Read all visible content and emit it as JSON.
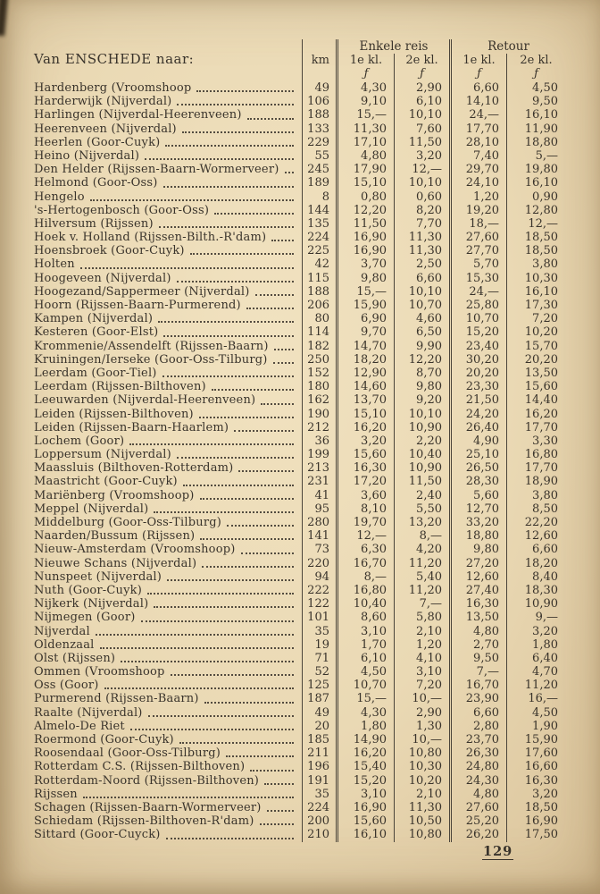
{
  "page": {
    "title": "Van ENSCHEDE naar:",
    "page_number": "129",
    "colors": {
      "paper": "#ead9b4",
      "ink": "#39332b",
      "rule": "#4a443a"
    }
  },
  "table": {
    "headers": {
      "km": "km",
      "enkele_reis": "Enkele reis",
      "retour": "Retour",
      "first_class": "1e kl.",
      "second_class": "2e kl.",
      "currency": "ƒ"
    },
    "rows": [
      {
        "name": "Hardenberg (Vroomshoop",
        "km": "49",
        "e1": "4,30",
        "e2": "2,90",
        "r1": "6,60",
        "r2": "4,50"
      },
      {
        "name": "Harderwijk (Nijverdal)",
        "km": "106",
        "e1": "9,10",
        "e2": "6,10",
        "r1": "14,10",
        "r2": "9,50"
      },
      {
        "name": "Harlingen (Nijverdal-Heerenveen)",
        "km": "188",
        "e1": "15,—",
        "e2": "10,10",
        "r1": "24,—",
        "r2": "16,10"
      },
      {
        "name": "Heerenveen (Nijverdal)",
        "km": "133",
        "e1": "11,30",
        "e2": "7,60",
        "r1": "17,70",
        "r2": "11,90"
      },
      {
        "name": "Heerlen (Goor-Cuyk)",
        "km": "229",
        "e1": "17,10",
        "e2": "11,50",
        "r1": "28,10",
        "r2": "18,80"
      },
      {
        "name": "Heino (Nijverdal)",
        "km": "55",
        "e1": "4,80",
        "e2": "3,20",
        "r1": "7,40",
        "r2": "5,—"
      },
      {
        "name": "Den Helder (Rijssen-Baarn-Wormerveer)",
        "km": "245",
        "e1": "17,90",
        "e2": "12,—",
        "r1": "29,70",
        "r2": "19,80"
      },
      {
        "name": "Helmond (Goor-Oss)",
        "km": "189",
        "e1": "15,10",
        "e2": "10,10",
        "r1": "24,10",
        "r2": "16,10"
      },
      {
        "name": "Hengelo",
        "km": "8",
        "e1": "0,80",
        "e2": "0,60",
        "r1": "1,20",
        "r2": "0,90"
      },
      {
        "name": "'s-Hertogenbosch (Goor-Oss)",
        "km": "144",
        "e1": "12,20",
        "e2": "8,20",
        "r1": "19,20",
        "r2": "12,80"
      },
      {
        "name": "Hilversum (Rijssen)",
        "km": "135",
        "e1": "11,50",
        "e2": "7,70",
        "r1": "18,—",
        "r2": "12,—"
      },
      {
        "name": "Hoek v. Holland (Rijssen-Bilth.-R'dam)",
        "km": "224",
        "e1": "16,90",
        "e2": "11,30",
        "r1": "27,60",
        "r2": "18,50"
      },
      {
        "name": "Hoensbroek (Goor-Cuyk)",
        "km": "225",
        "e1": "16,90",
        "e2": "11,30",
        "r1": "27,70",
        "r2": "18,50"
      },
      {
        "name": "Holten",
        "km": "42",
        "e1": "3,70",
        "e2": "2,50",
        "r1": "5,70",
        "r2": "3,80"
      },
      {
        "name": "Hoogeveen (Nijverdal)",
        "km": "115",
        "e1": "9,80",
        "e2": "6,60",
        "r1": "15,30",
        "r2": "10,30"
      },
      {
        "name": "Hoogezand/Sappermeer (Nijverdal)",
        "km": "188",
        "e1": "15,—",
        "e2": "10,10",
        "r1": "24,—",
        "r2": "16,10"
      },
      {
        "name": "Hoorn (Rijssen-Baarn-Purmerend)",
        "km": "206",
        "e1": "15,90",
        "e2": "10,70",
        "r1": "25,80",
        "r2": "17,30"
      },
      {
        "name": "Kampen (Nijverdal)",
        "km": "80",
        "e1": "6,90",
        "e2": "4,60",
        "r1": "10,70",
        "r2": "7,20"
      },
      {
        "name": "Kesteren (Goor-Elst)",
        "km": "114",
        "e1": "9,70",
        "e2": "6,50",
        "r1": "15,20",
        "r2": "10,20"
      },
      {
        "name": "Krommenie/Assendelft (Rijssen-Baarn)",
        "km": "182",
        "e1": "14,70",
        "e2": "9,90",
        "r1": "23,40",
        "r2": "15,70"
      },
      {
        "name": "Kruiningen/Ierseke (Goor-Oss-Tilburg)",
        "km": "250",
        "e1": "18,20",
        "e2": "12,20",
        "r1": "30,20",
        "r2": "20,20"
      },
      {
        "name": "Leerdam (Goor-Tiel)",
        "km": "152",
        "e1": "12,90",
        "e2": "8,70",
        "r1": "20,20",
        "r2": "13,50"
      },
      {
        "name": "Leerdam (Rijssen-Bilthoven)",
        "km": "180",
        "e1": "14,60",
        "e2": "9,80",
        "r1": "23,30",
        "r2": "15,60"
      },
      {
        "name": "Leeuwarden (Nijverdal-Heerenveen)",
        "km": "162",
        "e1": "13,70",
        "e2": "9,20",
        "r1": "21,50",
        "r2": "14,40"
      },
      {
        "name": "Leiden (Rijssen-Bilthoven)",
        "km": "190",
        "e1": "15,10",
        "e2": "10,10",
        "r1": "24,20",
        "r2": "16,20"
      },
      {
        "name": "Leiden (Rijssen-Baarn-Haarlem)",
        "km": "212",
        "e1": "16,20",
        "e2": "10,90",
        "r1": "26,40",
        "r2": "17,70"
      },
      {
        "name": "Lochem (Goor)",
        "km": "36",
        "e1": "3,20",
        "e2": "2,20",
        "r1": "4,90",
        "r2": "3,30"
      },
      {
        "name": "Loppersum (Nijverdal)",
        "km": "199",
        "e1": "15,60",
        "e2": "10,40",
        "r1": "25,10",
        "r2": "16,80"
      },
      {
        "name": "Maassluis (Bilthoven-Rotterdam)",
        "km": "213",
        "e1": "16,30",
        "e2": "10,90",
        "r1": "26,50",
        "r2": "17,70"
      },
      {
        "name": "Maastricht (Goor-Cuyk)",
        "km": "231",
        "e1": "17,20",
        "e2": "11,50",
        "r1": "28,30",
        "r2": "18,90"
      },
      {
        "name": "Mariënberg (Vroomshoop)",
        "km": "41",
        "e1": "3,60",
        "e2": "2,40",
        "r1": "5,60",
        "r2": "3,80"
      },
      {
        "name": "Meppel (Nijverdal)",
        "km": "95",
        "e1": "8,10",
        "e2": "5,50",
        "r1": "12,70",
        "r2": "8,50"
      },
      {
        "name": "Middelburg (Goor-Oss-Tilburg)",
        "km": "280",
        "e1": "19,70",
        "e2": "13,20",
        "r1": "33,20",
        "r2": "22,20"
      },
      {
        "name": "Naarden/Bussum (Rijssen)",
        "km": "141",
        "e1": "12,—",
        "e2": "8,—",
        "r1": "18,80",
        "r2": "12,60"
      },
      {
        "name": "Nieuw-Amsterdam (Vroomshoop)",
        "km": "73",
        "e1": "6,30",
        "e2": "4,20",
        "r1": "9,80",
        "r2": "6,60"
      },
      {
        "name": "Nieuwe Schans (Nijverdal)",
        "km": "220",
        "e1": "16,70",
        "e2": "11,20",
        "r1": "27,20",
        "r2": "18,20"
      },
      {
        "name": "Nunspeet (Nijverdal)",
        "km": "94",
        "e1": "8,—",
        "e2": "5,40",
        "r1": "12,60",
        "r2": "8,40"
      },
      {
        "name": "Nuth (Goor-Cuyk)",
        "km": "222",
        "e1": "16,80",
        "e2": "11,20",
        "r1": "27,40",
        "r2": "18,30"
      },
      {
        "name": "Nijkerk (Nijverdal)",
        "km": "122",
        "e1": "10,40",
        "e2": "7,—",
        "r1": "16,30",
        "r2": "10,90"
      },
      {
        "name": "Nijmegen (Goor)",
        "km": "101",
        "e1": "8,60",
        "e2": "5,80",
        "r1": "13,50",
        "r2": "9,—"
      },
      {
        "name": "Nijverdal",
        "km": "35",
        "e1": "3,10",
        "e2": "2,10",
        "r1": "4,80",
        "r2": "3,20"
      },
      {
        "name": "Oldenzaal",
        "km": "19",
        "e1": "1,70",
        "e2": "1,20",
        "r1": "2,70",
        "r2": "1,80"
      },
      {
        "name": "Olst (Rijssen)",
        "km": "71",
        "e1": "6,10",
        "e2": "4,10",
        "r1": "9,50",
        "r2": "6,40"
      },
      {
        "name": "Ommen (Vroomshoop",
        "km": "52",
        "e1": "4,50",
        "e2": "3,10",
        "r1": "7,—",
        "r2": "4,70"
      },
      {
        "name": "Oss (Goor)",
        "km": "125",
        "e1": "10,70",
        "e2": "7,20",
        "r1": "16,70",
        "r2": "11,20"
      },
      {
        "name": "Purmerend (Rijssen-Baarn)",
        "km": "187",
        "e1": "15,—",
        "e2": "10,—",
        "r1": "23,90",
        "r2": "16,—"
      },
      {
        "name": "Raalte (Nijverdal)",
        "km": "49",
        "e1": "4,30",
        "e2": "2,90",
        "r1": "6,60",
        "r2": "4,50"
      },
      {
        "name": "Almelo-De Riet",
        "km": "20",
        "e1": "1,80",
        "e2": "1,30",
        "r1": "2,80",
        "r2": "1,90"
      },
      {
        "name": "Roermond (Goor-Cuyk)",
        "km": "185",
        "e1": "14,90",
        "e2": "10,—",
        "r1": "23,70",
        "r2": "15,90"
      },
      {
        "name": "Roosendaal (Goor-Oss-Tilburg)",
        "km": "211",
        "e1": "16,20",
        "e2": "10,80",
        "r1": "26,30",
        "r2": "17,60"
      },
      {
        "name": "Rotterdam C.S. (Rijssen-Bilthoven)",
        "km": "196",
        "e1": "15,40",
        "e2": "10,30",
        "r1": "24,80",
        "r2": "16,60"
      },
      {
        "name": "Rotterdam-Noord (Rijssen-Bilthoven)",
        "km": "191",
        "e1": "15,20",
        "e2": "10,20",
        "r1": "24,30",
        "r2": "16,30"
      },
      {
        "name": "Rijssen",
        "km": "35",
        "e1": "3,10",
        "e2": "2,10",
        "r1": "4,80",
        "r2": "3,20"
      },
      {
        "name": "Schagen (Rijssen-Baarn-Wormerveer)",
        "km": "224",
        "e1": "16,90",
        "e2": "11,30",
        "r1": "27,60",
        "r2": "18,50"
      },
      {
        "name": "Schiedam (Rijssen-Bilthoven-R'dam)",
        "km": "200",
        "e1": "15,60",
        "e2": "10,50",
        "r1": "25,20",
        "r2": "16,90"
      },
      {
        "name": "Sittard (Goor-Cuyck)",
        "km": "210",
        "e1": "16,10",
        "e2": "10,80",
        "r1": "26,20",
        "r2": "17,50"
      }
    ]
  }
}
